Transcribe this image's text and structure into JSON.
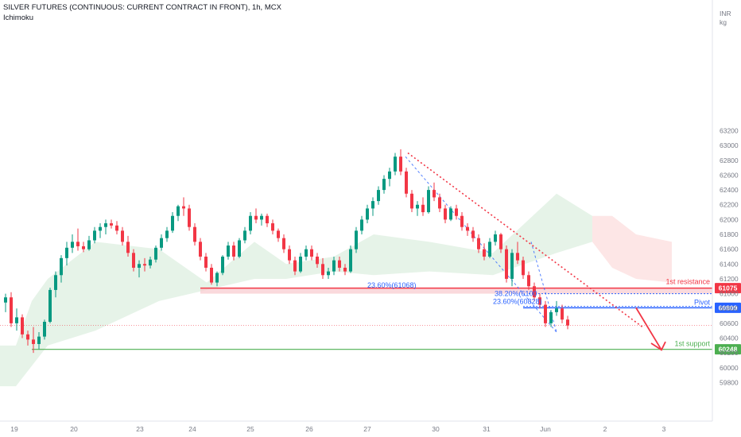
{
  "header": {
    "title": "SILVER FUTURES (CONTINUOUS: CURRENT CONTRACT IN FRONT), 1h, MCX",
    "indicator": "Ichimoku"
  },
  "axis": {
    "unit_line1": "INR",
    "unit_line2": "kg",
    "y_ticks": [
      "63200",
      "63000",
      "62800",
      "62600",
      "62400",
      "62200",
      "62000",
      "61800",
      "61600",
      "61400",
      "61200",
      "61000",
      "60800",
      "60600",
      "60400",
      "60200",
      "60000",
      "59800"
    ],
    "x_ticks": [
      "19",
      "20",
      "23",
      "24",
      "25",
      "26",
      "27",
      "30",
      "31",
      "Jun",
      "2",
      "3"
    ]
  },
  "colors": {
    "up": "#089981",
    "down": "#f23645",
    "resistance": "#f23645",
    "pivot": "#2962ff",
    "support": "#4caf50",
    "cloud_green": "#e3f2e5",
    "cloud_red": "#fde3e3"
  },
  "chart_data": {
    "type": "candlestick",
    "ylim": [
      59700,
      63300
    ],
    "grid": false,
    "levels": [
      {
        "name": "1st resistance",
        "value": 61075,
        "badge": "61075"
      },
      {
        "name": "Pivot",
        "value": 60809,
        "badge": "60809"
      },
      {
        "name": "1st support",
        "value": 60248,
        "badge": "60248"
      }
    ],
    "fib_labels": [
      {
        "text": "23.60%(61068)",
        "value": 61068
      },
      {
        "text": "38.20%(6100",
        "value": 61000
      },
      {
        "text": "23.60%(60828)",
        "value": 60828
      }
    ],
    "last_price": 60570,
    "candles": [
      [
        60880,
        61000,
        60750,
        60950
      ],
      [
        60950,
        61020,
        60550,
        60600
      ],
      [
        60600,
        60800,
        60500,
        60680
      ],
      [
        60680,
        60720,
        60400,
        60450
      ],
      [
        60450,
        60500,
        60300,
        60380
      ],
      [
        60380,
        60550,
        60200,
        60320
      ],
      [
        60320,
        60480,
        60250,
        60420
      ],
      [
        60420,
        60650,
        60380,
        60620
      ],
      [
        60620,
        61080,
        60600,
        61050
      ],
      [
        61050,
        61300,
        60950,
        61250
      ],
      [
        61250,
        61520,
        61150,
        61480
      ],
      [
        61480,
        61700,
        61380,
        61620
      ],
      [
        61620,
        61800,
        61550,
        61700
      ],
      [
        61700,
        61880,
        61580,
        61640
      ],
      [
        61640,
        61700,
        61560,
        61600
      ],
      [
        61600,
        61780,
        61580,
        61720
      ],
      [
        61720,
        61900,
        61680,
        61850
      ],
      [
        61850,
        61950,
        61750,
        61900
      ],
      [
        61900,
        62000,
        61800,
        61950
      ],
      [
        61950,
        62000,
        61880,
        61920
      ],
      [
        61920,
        61980,
        61800,
        61850
      ],
      [
        61850,
        61900,
        61650,
        61700
      ],
      [
        61700,
        61780,
        61500,
        61550
      ],
      [
        61550,
        61600,
        61300,
        61350
      ],
      [
        61350,
        61450,
        61220,
        61400
      ],
      [
        61400,
        61480,
        61300,
        61380
      ],
      [
        61380,
        61500,
        61340,
        61460
      ],
      [
        61460,
        61650,
        61420,
        61620
      ],
      [
        61620,
        61800,
        61580,
        61750
      ],
      [
        61750,
        61900,
        61700,
        61850
      ],
      [
        61850,
        62100,
        61820,
        62050
      ],
      [
        62050,
        62200,
        61980,
        62180
      ],
      [
        62180,
        62300,
        62050,
        62150
      ],
      [
        62150,
        62200,
        61850,
        61900
      ],
      [
        61900,
        61950,
        61650,
        61700
      ],
      [
        61700,
        61750,
        61450,
        61500
      ],
      [
        61500,
        61550,
        61300,
        61350
      ],
      [
        61350,
        61400,
        61120,
        61150
      ],
      [
        61150,
        61300,
        61100,
        61280
      ],
      [
        61280,
        61520,
        61250,
        61500
      ],
      [
        61500,
        61700,
        61460,
        61650
      ],
      [
        61650,
        61700,
        61450,
        61500
      ],
      [
        61500,
        61750,
        61480,
        61720
      ],
      [
        61720,
        61900,
        61680,
        61850
      ],
      [
        61850,
        62100,
        61800,
        62050
      ],
      [
        62050,
        62150,
        61950,
        62000
      ],
      [
        62000,
        62080,
        61920,
        62050
      ],
      [
        62050,
        62080,
        61900,
        61950
      ],
      [
        61950,
        62000,
        61800,
        61850
      ],
      [
        61850,
        61880,
        61700,
        61750
      ],
      [
        61750,
        61800,
        61550,
        61600
      ],
      [
        61600,
        61650,
        61400,
        61450
      ],
      [
        61450,
        61500,
        61250,
        61300
      ],
      [
        61300,
        61550,
        61280,
        61500
      ],
      [
        61500,
        61650,
        61450,
        61600
      ],
      [
        61600,
        61650,
        61450,
        61500
      ],
      [
        61500,
        61550,
        61350,
        61400
      ],
      [
        61400,
        61480,
        61200,
        61250
      ],
      [
        61250,
        61350,
        61200,
        61300
      ],
      [
        61300,
        61500,
        61250,
        61450
      ],
      [
        61450,
        61500,
        61300,
        61350
      ],
      [
        61350,
        61400,
        61250,
        61300
      ],
      [
        61300,
        61650,
        61280,
        61600
      ],
      [
        61600,
        61900,
        61550,
        61850
      ],
      [
        61850,
        62050,
        61800,
        62000
      ],
      [
        62000,
        62200,
        61950,
        62150
      ],
      [
        62150,
        62300,
        62050,
        62250
      ],
      [
        62250,
        62450,
        62200,
        62400
      ],
      [
        62400,
        62600,
        62350,
        62550
      ],
      [
        62550,
        62700,
        62450,
        62650
      ],
      [
        62650,
        62900,
        62600,
        62850
      ],
      [
        62850,
        62950,
        62600,
        62650
      ],
      [
        62650,
        62700,
        62300,
        62350
      ],
      [
        62350,
        62400,
        62100,
        62150
      ],
      [
        62150,
        62250,
        62050,
        62200
      ],
      [
        62200,
        62300,
        62050,
        62100
      ],
      [
        62100,
        62450,
        62080,
        62400
      ],
      [
        62400,
        62500,
        62250,
        62300
      ],
      [
        62300,
        62350,
        62100,
        62150
      ],
      [
        62150,
        62200,
        61950,
        62000
      ],
      [
        62000,
        62180,
        61980,
        62150
      ],
      [
        62150,
        62200,
        62000,
        62050
      ],
      [
        62050,
        62100,
        61850,
        61900
      ],
      [
        61900,
        61950,
        61780,
        61850
      ],
      [
        61850,
        61900,
        61700,
        61750
      ],
      [
        61750,
        61800,
        61550,
        61600
      ],
      [
        61600,
        61680,
        61450,
        61500
      ],
      [
        61500,
        61750,
        61480,
        61700
      ],
      [
        61700,
        61850,
        61650,
        61800
      ],
      [
        61800,
        61820,
        61550,
        61600
      ],
      [
        61600,
        61650,
        61150,
        61200
      ],
      [
        61200,
        61600,
        61100,
        61550
      ],
      [
        61550,
        61700,
        61400,
        61450
      ],
      [
        61450,
        61500,
        61200,
        61250
      ],
      [
        61250,
        61300,
        61050,
        61100
      ],
      [
        61100,
        61150,
        60900,
        60950
      ],
      [
        60950,
        61000,
        60800,
        60850
      ],
      [
        60850,
        60900,
        60550,
        60600
      ],
      [
        60600,
        60780,
        60550,
        60750
      ],
      [
        60750,
        60900,
        60700,
        60800
      ],
      [
        60800,
        60850,
        60600,
        60650
      ],
      [
        60650,
        60700,
        60520,
        60570
      ]
    ]
  }
}
